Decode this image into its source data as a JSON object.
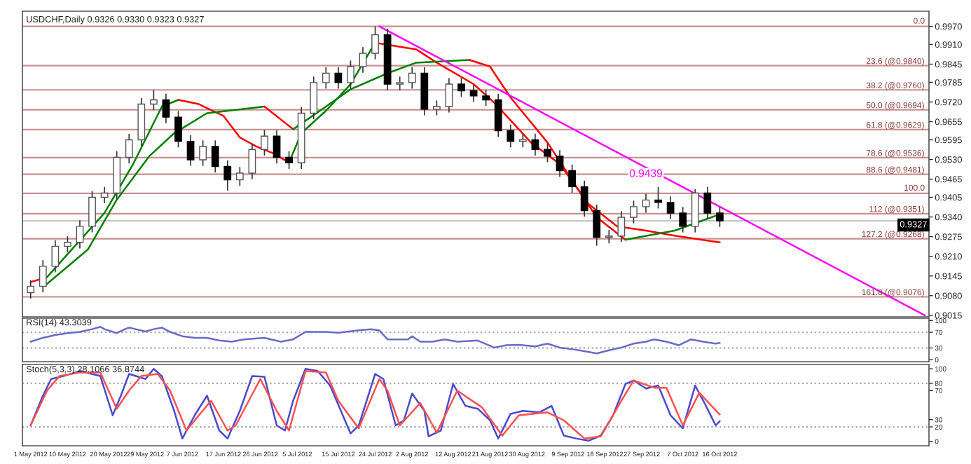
{
  "chart_data": [
    {
      "type": "candlestick",
      "title": "USDCHF,Daily 0.9326 0.9330 0.9323 0.9327",
      "tick_labels": "y",
      "xlim": [
        "2012-04-29",
        "2012-12-06"
      ],
      "ylim": [
        0.901,
        1.002
      ],
      "yticks": [
        {
          "value": 0.997,
          "label": "0.9970"
        },
        {
          "value": 0.991,
          "label": "0.9910"
        },
        {
          "value": 0.9845,
          "label": "0.9845"
        },
        {
          "value": 0.9785,
          "label": "0.9785"
        },
        {
          "value": 0.972,
          "label": "0.9720"
        },
        {
          "value": 0.9655,
          "label": "0.9655"
        },
        {
          "value": 0.9595,
          "label": "0.9595"
        },
        {
          "value": 0.953,
          "label": "0.9530"
        },
        {
          "value": 0.9465,
          "label": "0.9465"
        },
        {
          "value": 0.9405,
          "label": "0.9405"
        },
        {
          "value": 0.934,
          "label": "0.9340"
        },
        {
          "value": 0.9275,
          "label": "0.9275"
        },
        {
          "value": 0.921,
          "label": "0.9210"
        },
        {
          "value": 0.9145,
          "label": "0.9145"
        },
        {
          "value": 0.908,
          "label": "0.9080"
        },
        {
          "value": 0.9015,
          "label": "0.9015"
        }
      ],
      "x": [
        "2012-05-01",
        "2012-05-04",
        "2012-05-07",
        "2012-05-10",
        "2012-05-13",
        "2012-05-16",
        "2012-05-19",
        "2012-05-22",
        "2012-05-25",
        "2012-05-28",
        "2012-05-31",
        "2012-06-03",
        "2012-06-06",
        "2012-06-09",
        "2012-06-12",
        "2012-06-15",
        "2012-06-18",
        "2012-06-21",
        "2012-06-24",
        "2012-06-27",
        "2012-06-30",
        "2012-07-03",
        "2012-07-06",
        "2012-07-09",
        "2012-07-12",
        "2012-07-15",
        "2012-07-18",
        "2012-07-21",
        "2012-07-24",
        "2012-07-27",
        "2012-07-30",
        "2012-08-02",
        "2012-08-05",
        "2012-08-08",
        "2012-08-11",
        "2012-08-14",
        "2012-08-17",
        "2012-08-20",
        "2012-08-23",
        "2012-08-26",
        "2012-08-29",
        "2012-09-01",
        "2012-09-04",
        "2012-09-07",
        "2012-09-10",
        "2012-09-13",
        "2012-09-16",
        "2012-09-19",
        "2012-09-22",
        "2012-09-25",
        "2012-09-28",
        "2012-10-01",
        "2012-10-04",
        "2012-10-07",
        "2012-10-10",
        "2012-10-13",
        "2012-10-16"
      ],
      "ohlc": [
        [
          0.909,
          0.9131,
          0.907,
          0.9111
        ],
        [
          0.9111,
          0.9197,
          0.9091,
          0.9177
        ],
        [
          0.9177,
          0.9263,
          0.9157,
          0.9243
        ],
        [
          0.9243,
          0.9276,
          0.9223,
          0.9256
        ],
        [
          0.9256,
          0.9329,
          0.9236,
          0.9309
        ],
        [
          0.9309,
          0.9425,
          0.9289,
          0.9405
        ],
        [
          0.9405,
          0.9439,
          0.9385,
          0.9419
        ],
        [
          0.9419,
          0.9557,
          0.9399,
          0.9537
        ],
        [
          0.9537,
          0.9615,
          0.9517,
          0.9595
        ],
        [
          0.9595,
          0.9733,
          0.9575,
          0.9713
        ],
        [
          0.9713,
          0.976,
          0.9693,
          0.9727
        ],
        [
          0.9727,
          0.9747,
          0.965,
          0.967
        ],
        [
          0.967,
          0.969,
          0.957,
          0.959
        ],
        [
          0.959,
          0.961,
          0.9509,
          0.9529
        ],
        [
          0.9529,
          0.9593,
          0.9509,
          0.9573
        ],
        [
          0.9573,
          0.9593,
          0.9487,
          0.9507
        ],
        [
          0.9507,
          0.9527,
          0.9427,
          0.9463
        ],
        [
          0.9463,
          0.9505,
          0.9443,
          0.9485
        ],
        [
          0.9485,
          0.9583,
          0.9465,
          0.9563
        ],
        [
          0.9563,
          0.9627,
          0.9543,
          0.9607
        ],
        [
          0.9607,
          0.9627,
          0.9517,
          0.9537
        ],
        [
          0.9537,
          0.9557,
          0.9499,
          0.9519
        ],
        [
          0.9519,
          0.9703,
          0.9499,
          0.9683
        ],
        [
          0.9683,
          0.9804,
          0.9663,
          0.9784
        ],
        [
          0.9784,
          0.9835,
          0.9764,
          0.9815
        ],
        [
          0.9815,
          0.9835,
          0.9764,
          0.9784
        ],
        [
          0.9784,
          0.9857,
          0.9764,
          0.9837
        ],
        [
          0.9837,
          0.9901,
          0.9817,
          0.9881
        ],
        [
          0.9881,
          0.997,
          0.9861,
          0.9942
        ],
        [
          0.9942,
          0.9962,
          0.9759,
          0.9779
        ],
        [
          0.9779,
          0.9804,
          0.9759,
          0.9784
        ],
        [
          0.9784,
          0.9835,
          0.9764,
          0.9815
        ],
        [
          0.9815,
          0.9835,
          0.9676,
          0.9696
        ],
        [
          0.9696,
          0.9725,
          0.9676,
          0.9705
        ],
        [
          0.9705,
          0.9799,
          0.9685,
          0.9779
        ],
        [
          0.9779,
          0.9799,
          0.9737,
          0.9757
        ],
        [
          0.9757,
          0.9777,
          0.972,
          0.974
        ],
        [
          0.974,
          0.976,
          0.9707,
          0.9727
        ],
        [
          0.9727,
          0.9747,
          0.9605,
          0.9625
        ],
        [
          0.9625,
          0.9645,
          0.957,
          0.959
        ],
        [
          0.959,
          0.9615,
          0.957,
          0.9595
        ],
        [
          0.9595,
          0.9615,
          0.9543,
          0.9563
        ],
        [
          0.9563,
          0.9583,
          0.9521,
          0.9541
        ],
        [
          0.9541,
          0.9561,
          0.9473,
          0.9493
        ],
        [
          0.9493,
          0.9513,
          0.942,
          0.944
        ],
        [
          0.944,
          0.946,
          0.9341,
          0.9361
        ],
        [
          0.9361,
          0.9381,
          0.9245,
          0.9273
        ],
        [
          0.9273,
          0.9297,
          0.9253,
          0.9277
        ],
        [
          0.9277,
          0.9359,
          0.9257,
          0.9339
        ],
        [
          0.9339,
          0.9394,
          0.9319,
          0.9374
        ],
        [
          0.9374,
          0.9416,
          0.9354,
          0.9396
        ],
        [
          0.9396,
          0.9439,
          0.9368,
          0.9388
        ],
        [
          0.9388,
          0.9408,
          0.9333,
          0.9353
        ],
        [
          0.9353,
          0.9373,
          0.9289,
          0.9309
        ],
        [
          0.9309,
          0.9432,
          0.9289,
          0.9419
        ],
        [
          0.9419,
          0.9439,
          0.9333,
          0.9353
        ],
        [
          0.9353,
          0.9373,
          0.9307,
          0.9327
        ]
      ],
      "series": [
        {
          "type": "line",
          "color": "#ff0000",
          "x": [
            "2012-05-01",
            "2012-05-05"
          ],
          "values": [
            0.9125,
            0.9141
          ]
        },
        {
          "type": "line",
          "color": "#008000",
          "x": [
            "2012-05-05",
            "2012-05-19",
            "2012-05-26",
            "2012-06-02",
            "2012-06-06"
          ],
          "values": [
            0.9141,
            0.9353,
            0.9515,
            0.9705,
            0.9727
          ]
        },
        {
          "type": "line",
          "color": "#ff0000",
          "x": [
            "2012-06-06",
            "2012-06-11",
            "2012-06-17",
            "2012-06-21",
            "2012-06-25",
            "2012-06-29",
            "2012-07-03"
          ],
          "values": [
            0.9727,
            0.9713,
            0.9674,
            0.9603,
            0.9573,
            0.9551,
            0.952
          ]
        },
        {
          "type": "line",
          "color": "#008000",
          "x": [
            "2012-07-03",
            "2012-07-06",
            "2012-07-12",
            "2012-07-18",
            "2012-07-24"
          ],
          "values": [
            0.952,
            0.9617,
            0.9691,
            0.9779,
            0.9916
          ]
        },
        {
          "type": "line",
          "color": "#ff0000",
          "x": [
            "2012-07-24",
            "2012-08-03",
            "2012-08-08",
            "2012-08-17",
            "2012-08-22",
            "2012-08-28",
            "2012-08-31",
            "2012-09-07",
            "2012-09-14",
            "2012-09-21",
            "2012-09-28",
            "2012-10-05",
            "2012-10-16"
          ],
          "values": [
            0.9916,
            0.9894,
            0.985,
            0.9779,
            0.9718,
            0.963,
            0.9586,
            0.9515,
            0.9383,
            0.9309,
            0.9295,
            0.9278,
            0.9256
          ]
        },
        {
          "type": "line",
          "color": "#008000",
          "x": [
            "2012-05-05",
            "2012-05-15",
            "2012-05-22",
            "2012-05-30",
            "2012-06-05",
            "2012-06-13",
            "2012-06-27"
          ],
          "values": [
            0.9119,
            0.9233,
            0.9397,
            0.9542,
            0.9617,
            0.9683,
            0.9705
          ]
        },
        {
          "type": "line",
          "color": "#ff0000",
          "x": [
            "2012-06-27",
            "2012-07-04"
          ],
          "values": [
            0.9705,
            0.963
          ]
        },
        {
          "type": "line",
          "color": "#008000",
          "x": [
            "2012-07-04",
            "2012-07-12",
            "2012-07-18",
            "2012-07-27",
            "2012-08-03",
            "2012-08-16"
          ],
          "values": [
            0.963,
            0.9705,
            0.9762,
            0.9815,
            0.985,
            0.9859
          ]
        },
        {
          "type": "line",
          "color": "#ff0000",
          "x": [
            "2012-08-16",
            "2012-08-21",
            "2012-08-26",
            "2012-09-04",
            "2012-09-11",
            "2012-09-16",
            "2012-09-23"
          ],
          "values": [
            0.9859,
            0.9837,
            0.9735,
            0.9586,
            0.9441,
            0.9339,
            0.9265
          ]
        },
        {
          "type": "line",
          "color": "#008000",
          "x": [
            "2012-09-23",
            "2012-10-05",
            "2012-10-15"
          ],
          "values": [
            0.9265,
            0.9295,
            0.9344
          ]
        },
        {
          "type": "line",
          "color": "#ff00ff",
          "x": [
            "2012-07-25",
            "2012-12-05"
          ],
          "values": [
            0.997,
            0.9015
          ]
        }
      ],
      "ref_lines": [
        {
          "axis": "y",
          "value": 0.9327,
          "label": "0.9327",
          "color": "#c8c8c8"
        },
        {
          "axis": "y",
          "value": 0.997,
          "color": "#c89090"
        },
        {
          "axis": "y",
          "value": 0.984,
          "label": "23.6 (@0.9840)",
          "color": "#c89090"
        },
        {
          "axis": "y",
          "value": 0.976,
          "label": "38.2 (@0.9760)",
          "color": "#c89090"
        },
        {
          "axis": "y",
          "value": 0.9694,
          "label": "50.0 (@0.9694)",
          "color": "#c89090"
        },
        {
          "axis": "y",
          "value": 0.9629,
          "label": "61.8 (@0.9629)",
          "color": "#c89090"
        },
        {
          "axis": "y",
          "value": 0.9536,
          "label": "78.6 (@0.9536)",
          "color": "#c89090"
        },
        {
          "axis": "y",
          "value": 0.9481,
          "label": "88.6 (@0.9481)",
          "color": "#c89090"
        },
        {
          "axis": "y",
          "value": 0.9418,
          "color": "#c89090"
        },
        {
          "axis": "y",
          "value": 0.9351,
          "label": "112 (@0.9351)",
          "color": "#c89090"
        },
        {
          "axis": "y",
          "value": 0.9268,
          "label": "127.2 (@0.9268)",
          "color": "#c89090"
        },
        {
          "axis": "y",
          "value": 0.9076,
          "label": "161.8 (@0.9076)",
          "color": "#c89090"
        }
      ],
      "annotations": [
        {
          "text": "0.9439",
          "x": "2012-09-28",
          "y": 0.9439
        },
        {
          "text": "0.0",
          "x": "2012-12-05",
          "y": 0.997
        },
        {
          "text": "100.0",
          "x": "2012-12-05",
          "y": 0.9418
        }
      ]
    },
    {
      "type": "line",
      "title": "RSI(14) 43.3039",
      "tick_labels": "y",
      "xlim": [
        "2012-04-29",
        "2012-12-06"
      ],
      "ylim": [
        -5,
        106
      ],
      "yticks": [
        0,
        30,
        70,
        100
      ],
      "ref_lines": [
        {
          "axis": "y",
          "value": 70,
          "color": "#aaaaaa",
          "line_style": "dotted"
        },
        {
          "axis": "y",
          "value": 30,
          "color": "#aaaaaa",
          "line_style": "dotted"
        }
      ],
      "series": [
        {
          "type": "line",
          "color": "#6a6ac8",
          "x": [
            "2012-05-01",
            "2012-05-04",
            "2012-05-07",
            "2012-05-10",
            "2012-05-13",
            "2012-05-16",
            "2012-05-18",
            "2012-05-19",
            "2012-05-22",
            "2012-05-24",
            "2012-05-25",
            "2012-05-29",
            "2012-05-31",
            "2012-06-02",
            "2012-06-04",
            "2012-06-07",
            "2012-06-10",
            "2012-06-13",
            "2012-06-16",
            "2012-06-19",
            "2012-06-22",
            "2012-06-27",
            "2012-07-01",
            "2012-07-04",
            "2012-07-07",
            "2012-07-12",
            "2012-07-15",
            "2012-07-20",
            "2012-07-23",
            "2012-07-25",
            "2012-07-27",
            "2012-08-01",
            "2012-08-02",
            "2012-08-04",
            "2012-08-07",
            "2012-08-10",
            "2012-08-13",
            "2012-08-18",
            "2012-08-22",
            "2012-08-25",
            "2012-08-28",
            "2012-09-01",
            "2012-09-04",
            "2012-09-07",
            "2012-09-10",
            "2012-09-13",
            "2012-09-16",
            "2012-09-19",
            "2012-09-22",
            "2012-09-25",
            "2012-09-28",
            "2012-09-30",
            "2012-10-03",
            "2012-10-06",
            "2012-10-09",
            "2012-10-12",
            "2012-10-15",
            "2012-10-16"
          ],
          "values": [
            46,
            56,
            63,
            68,
            71,
            78,
            84,
            78,
            68,
            78,
            82,
            72,
            78,
            82,
            71,
            60,
            56,
            56,
            49,
            46,
            52,
            56,
            46,
            52,
            71,
            71,
            69,
            75,
            78,
            75,
            52,
            52,
            60,
            46,
            46,
            52,
            46,
            49,
            31,
            37,
            38,
            34,
            41,
            31,
            27,
            22,
            16,
            24,
            31,
            41,
            46,
            52,
            46,
            37,
            52,
            46,
            41,
            43
          ]
        }
      ]
    },
    {
      "type": "line",
      "title": "Stoch(5,3,3) 28.1066 36.8744",
      "xlim": [
        "2012-04-29",
        "2012-12-06"
      ],
      "ylim": [
        -6,
        106
      ],
      "yticks": [
        0,
        20,
        30,
        70,
        80,
        100
      ],
      "xticks": [
        {
          "value": "2012-05-01",
          "label": "1 May 2012"
        },
        {
          "value": "2012-05-10",
          "label": "10 May 2012"
        },
        {
          "value": "2012-05-20",
          "label": "20 May 2012"
        },
        {
          "value": "2012-05-29",
          "label": "29 May 2012"
        },
        {
          "value": "2012-06-07",
          "label": "7 Jun 2012"
        },
        {
          "value": "2012-06-17",
          "label": "17 Jun 2012"
        },
        {
          "value": "2012-06-26",
          "label": "26 Jun 2012"
        },
        {
          "value": "2012-07-05",
          "label": "5 Jul 2012"
        },
        {
          "value": "2012-07-15",
          "label": "15 Jul 2012"
        },
        {
          "value": "2012-07-24",
          "label": "24 Jul 2012"
        },
        {
          "value": "2012-08-02",
          "label": "2 Aug 2012"
        },
        {
          "value": "2012-08-12",
          "label": "12 Aug 2012"
        },
        {
          "value": "2012-08-21",
          "label": "21 Aug 2012"
        },
        {
          "value": "2012-08-30",
          "label": "30 Aug 2012"
        },
        {
          "value": "2012-09-09",
          "label": "9 Sep 2012"
        },
        {
          "value": "2012-09-18",
          "label": "18 Sep 2012"
        },
        {
          "value": "2012-09-27",
          "label": "27 Sep 2012"
        },
        {
          "value": "2012-10-07",
          "label": "7 Oct 2012"
        },
        {
          "value": "2012-10-16",
          "label": "16 Oct 2012"
        }
      ],
      "ref_lines": [
        {
          "axis": "y",
          "value": 80,
          "color": "#aaaaaa",
          "line_style": "dotted"
        },
        {
          "axis": "y",
          "value": 20,
          "color": "#aaaaaa",
          "line_style": "dotted"
        }
      ],
      "series": [
        {
          "type": "line",
          "color": "#4a4ad0",
          "x": [
            "2012-05-01",
            "2012-05-04",
            "2012-05-06",
            "2012-05-09",
            "2012-05-13",
            "2012-05-18",
            "2012-05-21",
            "2012-05-23",
            "2012-05-25",
            "2012-05-29",
            "2012-05-31",
            "2012-06-02",
            "2012-06-05",
            "2012-06-07",
            "2012-06-10",
            "2012-06-13",
            "2012-06-16",
            "2012-06-18",
            "2012-06-21",
            "2012-06-24",
            "2012-06-27",
            "2012-06-30",
            "2012-07-02",
            "2012-07-04",
            "2012-07-07",
            "2012-07-10",
            "2012-07-13",
            "2012-07-18",
            "2012-07-20",
            "2012-07-24",
            "2012-07-26",
            "2012-07-29",
            "2012-07-31",
            "2012-08-02",
            "2012-08-05",
            "2012-08-06",
            "2012-08-09",
            "2012-08-12",
            "2012-08-15",
            "2012-08-18",
            "2012-08-21",
            "2012-08-23",
            "2012-08-26",
            "2012-08-29",
            "2012-09-02",
            "2012-09-05",
            "2012-09-08",
            "2012-09-11",
            "2012-09-14",
            "2012-09-17",
            "2012-09-20",
            "2012-09-23",
            "2012-09-25",
            "2012-09-28",
            "2012-10-01",
            "2012-10-04",
            "2012-10-07",
            "2012-10-10",
            "2012-10-12",
            "2012-10-15",
            "2012-10-16"
          ],
          "values": [
            22,
            63,
            86,
            90,
            97,
            90,
            36,
            63,
            93,
            86,
            100,
            90,
            42,
            4,
            36,
            63,
            15,
            4,
            42,
            90,
            89,
            22,
            15,
            56,
            100,
            97,
            77,
            11,
            22,
            93,
            86,
            22,
            29,
            66,
            42,
            7,
            15,
            79,
            49,
            45,
            29,
            4,
            38,
            42,
            40,
            49,
            8,
            4,
            1,
            8,
            36,
            79,
            84,
            73,
            77,
            36,
            18,
            77,
            56,
            22,
            28
          ]
        },
        {
          "type": "line",
          "color": "#ff5050",
          "x": [
            "2012-05-01",
            "2012-05-05",
            "2012-05-08",
            "2012-05-13",
            "2012-05-18",
            "2012-05-22",
            "2012-05-25",
            "2012-05-28",
            "2012-06-01",
            "2012-06-04",
            "2012-06-08",
            "2012-06-11",
            "2012-06-14",
            "2012-06-18",
            "2012-06-20",
            "2012-06-26",
            "2012-06-30",
            "2012-07-03",
            "2012-07-07",
            "2012-07-12",
            "2012-07-15",
            "2012-07-20",
            "2012-07-25",
            "2012-07-27",
            "2012-07-30",
            "2012-08-04",
            "2012-08-08",
            "2012-08-13",
            "2012-08-19",
            "2012-08-24",
            "2012-08-28",
            "2012-09-04",
            "2012-09-08",
            "2012-09-13",
            "2012-09-17",
            "2012-09-22",
            "2012-09-25",
            "2012-09-30",
            "2012-10-03",
            "2012-10-07",
            "2012-10-11",
            "2012-10-14",
            "2012-10-16"
          ],
          "values": [
            22,
            70,
            90,
            95,
            95,
            45,
            70,
            90,
            93,
            70,
            15,
            36,
            56,
            15,
            22,
            86,
            42,
            15,
            97,
            95,
            56,
            18,
            86,
            70,
            22,
            53,
            12,
            70,
            47,
            8,
            36,
            40,
            29,
            4,
            7,
            56,
            84,
            74,
            74,
            22,
            67,
            49,
            37
          ]
        }
      ]
    }
  ]
}
